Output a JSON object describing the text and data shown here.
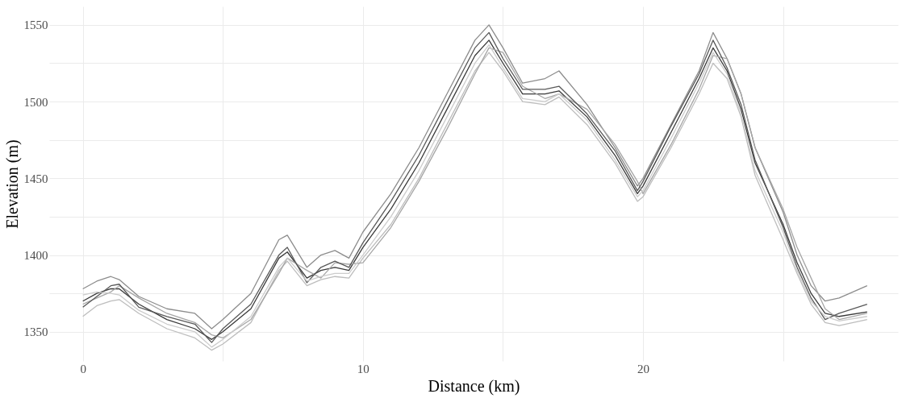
{
  "chart_data": {
    "type": "line",
    "xlabel": "Distance (km)",
    "ylabel": "Elevation (m)",
    "x": [
      0,
      0.5,
      1,
      1.3,
      2,
      3,
      4,
      4.6,
      5,
      6,
      7,
      7.3,
      8,
      8.5,
      9,
      9.5,
      10,
      11,
      12,
      13,
      14,
      14.5,
      15,
      15.7,
      16.5,
      17,
      18,
      19,
      19.8,
      20,
      21,
      22,
      22.5,
      23,
      23.5,
      24,
      25,
      25.5,
      26,
      26.5,
      27,
      28
    ],
    "series": [
      {
        "color": "#3a3a3a",
        "values": [
          1370,
          1375,
          1378,
          1378,
          1368,
          1358,
          1352,
          1345,
          1350,
          1365,
          1398,
          1402,
          1385,
          1390,
          1392,
          1390,
          1405,
          1430,
          1460,
          1495,
          1530,
          1540,
          1525,
          1505,
          1505,
          1507,
          1490,
          1465,
          1440,
          1445,
          1480,
          1515,
          1535,
          1520,
          1495,
          1460,
          1420,
          1395,
          1375,
          1362,
          1360,
          1363
        ]
      },
      {
        "color": "#8c8c8c",
        "values": [
          1378,
          1383,
          1386,
          1384,
          1373,
          1365,
          1362,
          1352,
          1358,
          1375,
          1410,
          1413,
          1392,
          1400,
          1403,
          1398,
          1415,
          1440,
          1470,
          1505,
          1540,
          1550,
          1535,
          1512,
          1515,
          1520,
          1498,
          1470,
          1445,
          1450,
          1485,
          1520,
          1545,
          1528,
          1505,
          1470,
          1428,
          1400,
          1380,
          1370,
          1372,
          1380
        ]
      },
      {
        "color": "#bdbdbd",
        "values": [
          1360,
          1367,
          1370,
          1371,
          1362,
          1352,
          1346,
          1338,
          1342,
          1356,
          1390,
          1396,
          1380,
          1384,
          1386,
          1385,
          1398,
          1420,
          1450,
          1485,
          1520,
          1532,
          1520,
          1500,
          1498,
          1503,
          1485,
          1460,
          1435,
          1438,
          1470,
          1505,
          1525,
          1515,
          1490,
          1452,
          1410,
          1388,
          1368,
          1356,
          1354,
          1358
        ]
      },
      {
        "color": "#a6a6a6",
        "values": [
          1368,
          1372,
          1376,
          1380,
          1372,
          1362,
          1356,
          1348,
          1346,
          1358,
          1388,
          1398,
          1390,
          1385,
          1395,
          1394,
          1395,
          1418,
          1448,
          1482,
          1518,
          1535,
          1532,
          1510,
          1502,
          1505,
          1495,
          1472,
          1448,
          1440,
          1472,
          1508,
          1530,
          1528,
          1505,
          1470,
          1430,
          1405,
          1385,
          1365,
          1358,
          1362
        ]
      },
      {
        "color": "#595959",
        "values": [
          1366,
          1373,
          1380,
          1381,
          1366,
          1360,
          1355,
          1343,
          1352,
          1368,
          1400,
          1405,
          1382,
          1392,
          1396,
          1392,
          1408,
          1435,
          1465,
          1500,
          1535,
          1545,
          1528,
          1508,
          1508,
          1510,
          1492,
          1468,
          1442,
          1448,
          1484,
          1518,
          1540,
          1522,
          1498,
          1462,
          1418,
          1392,
          1372,
          1358,
          1362,
          1368
        ]
      },
      {
        "color": "#cccccc",
        "values": [
          1374,
          1376,
          1375,
          1374,
          1364,
          1355,
          1350,
          1340,
          1345,
          1360,
          1392,
          1398,
          1383,
          1386,
          1388,
          1388,
          1400,
          1425,
          1455,
          1490,
          1525,
          1537,
          1522,
          1502,
          1500,
          1505,
          1488,
          1462,
          1438,
          1442,
          1476,
          1512,
          1532,
          1518,
          1492,
          1455,
          1415,
          1390,
          1370,
          1360,
          1357,
          1360
        ]
      }
    ],
    "xlim": [
      -1.2,
      29.1
    ],
    "ylim": [
      1331,
      1562
    ],
    "xticks": [
      0,
      {
        "value": 5,
        "label": null
      },
      10,
      {
        "value": 15,
        "label": null
      },
      20,
      {
        "value": 25,
        "label": null
      }
    ],
    "yticks": [
      1350,
      {
        "value": 1375,
        "label": null
      },
      1400,
      {
        "value": 1425,
        "label": null
      },
      1450,
      {
        "value": 1475,
        "label": null
      },
      1500,
      {
        "value": 1525,
        "label": null
      },
      1550
    ],
    "grid": true,
    "legend": false
  }
}
